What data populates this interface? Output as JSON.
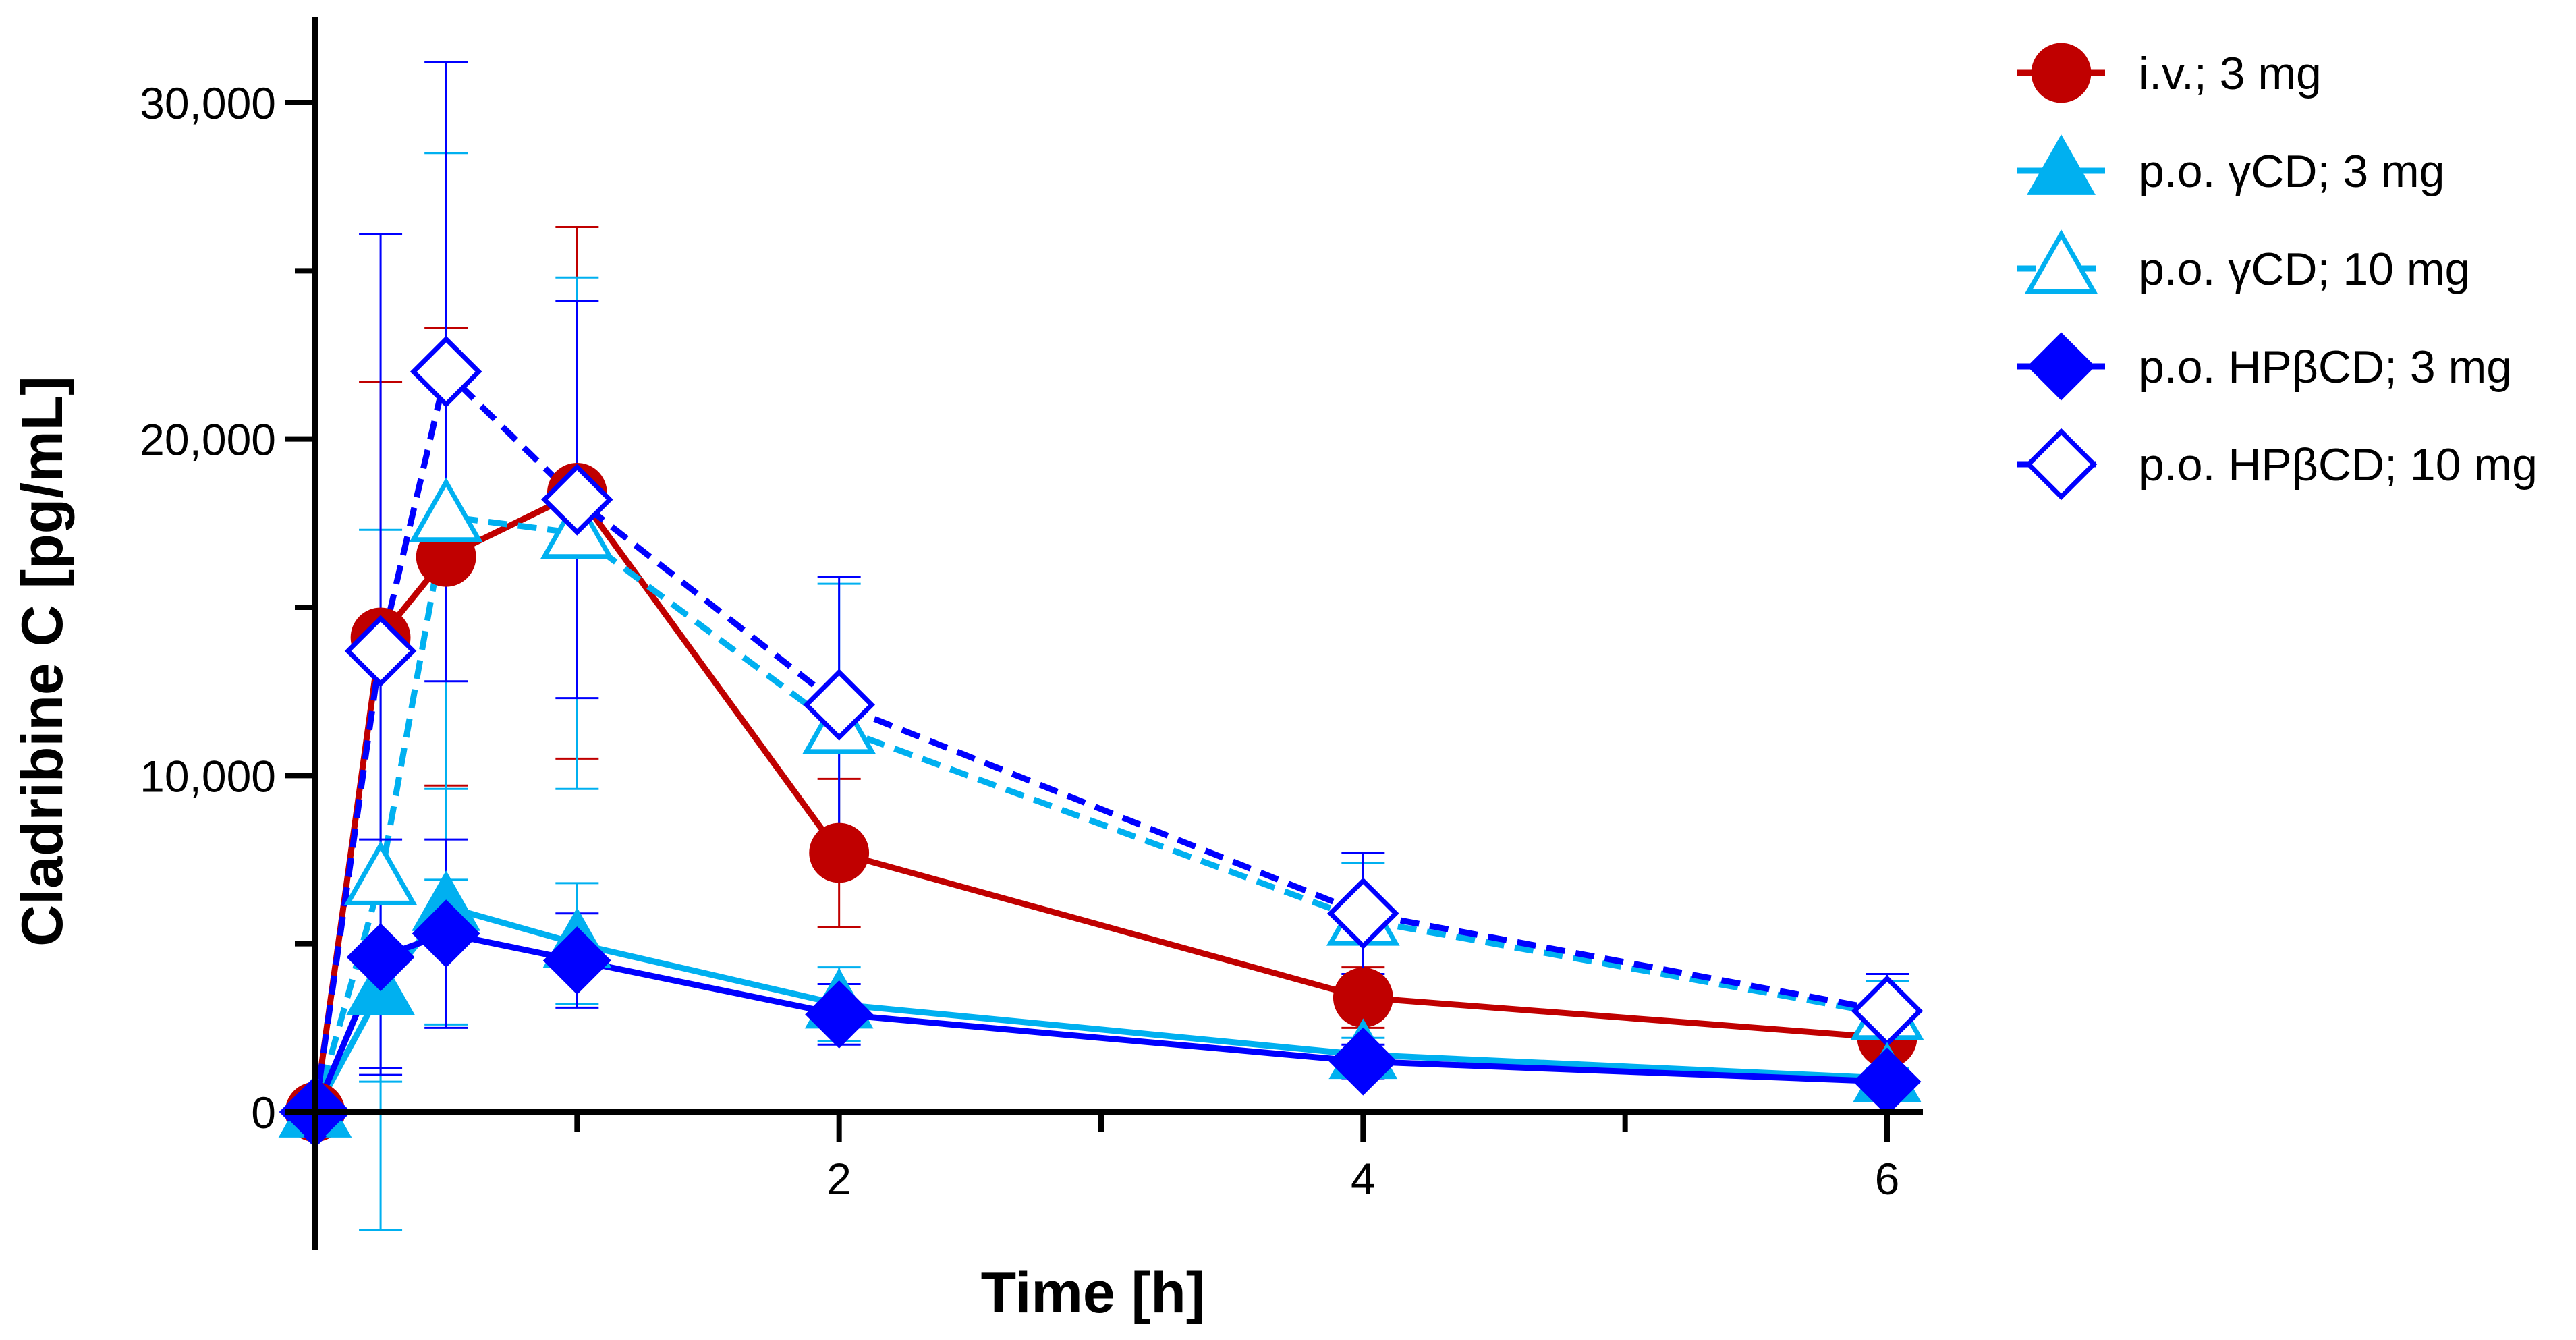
{
  "chart_data": {
    "type": "line",
    "title": "",
    "xlabel": "Time [h]",
    "ylabel": "Cladribine C [pg/mL]",
    "xlim": [
      0,
      6.15
    ],
    "ylim": [
      -4000,
      32500
    ],
    "x_ticks": [
      {
        "value": 0,
        "label": ""
      },
      {
        "value": 1,
        "label": ""
      },
      {
        "value": 2,
        "label": "2"
      },
      {
        "value": 3,
        "label": ""
      },
      {
        "value": 4,
        "label": "4"
      },
      {
        "value": 5,
        "label": ""
      },
      {
        "value": 6,
        "label": "6"
      }
    ],
    "y_ticks": [
      {
        "value": 0,
        "label": "0"
      },
      {
        "value": 5000,
        "label": ""
      },
      {
        "value": 10000,
        "label": "10,000"
      },
      {
        "value": 15000,
        "label": ""
      },
      {
        "value": 20000,
        "label": "20,000"
      },
      {
        "value": 25000,
        "label": ""
      },
      {
        "value": 30000,
        "label": "30,000"
      }
    ],
    "legend_position": "right",
    "grid": false,
    "series": [
      {
        "name": "i.v.; 3 mg",
        "color": "#c00000",
        "marker": "circle",
        "filled": true,
        "dash": "solid",
        "x": [
          0,
          0.25,
          0.5,
          1,
          2,
          4,
          6
        ],
        "y": [
          0,
          14100,
          16500,
          18400,
          7700,
          3400,
          2200
        ],
        "err": [
          0,
          7600,
          6800,
          7900,
          2200,
          900,
          600
        ]
      },
      {
        "name": "p.o. γCD; 3 mg",
        "color": "#00b0f0",
        "marker": "triangle",
        "filled": true,
        "dash": "solid",
        "x": [
          0,
          0.25,
          0.5,
          1,
          2,
          4,
          6
        ],
        "y": [
          0,
          3600,
          6100,
          5000,
          3200,
          1700,
          1000
        ],
        "err": [
          0,
          2700,
          3500,
          1800,
          1100,
          500,
          300
        ]
      },
      {
        "name": "p.o. γCD; 10 mg",
        "color": "#00b0f0",
        "marker": "triangle",
        "filled": false,
        "dash": "dashed",
        "x": [
          0,
          0.25,
          0.5,
          1,
          2,
          4,
          6
        ],
        "y": [
          0,
          6900,
          17700,
          17200,
          11400,
          5700,
          2900
        ],
        "err": [
          0,
          10400,
          10800,
          7600,
          4300,
          1700,
          1000
        ]
      },
      {
        "name": "p.o. HPβCD; 3 mg",
        "color": "#0000ff",
        "marker": "diamond",
        "filled": true,
        "dash": "solid",
        "x": [
          0,
          0.25,
          0.5,
          1,
          2,
          4,
          6
        ],
        "y": [
          0,
          4600,
          5300,
          4500,
          2900,
          1500,
          900
        ],
        "err": [
          0,
          3500,
          2800,
          1400,
          900,
          500,
          300
        ]
      },
      {
        "name": "p.o. HPβCD; 10 mg",
        "color": "#0000ff",
        "marker": "diamond",
        "filled": false,
        "dash": "dashed",
        "x": [
          0,
          0.25,
          0.5,
          1,
          2,
          4,
          6
        ],
        "y": [
          0,
          13700,
          22000,
          18200,
          12100,
          5900,
          3000
        ],
        "err": [
          0,
          12400,
          9200,
          5900,
          3800,
          1800,
          1100
        ]
      }
    ]
  }
}
